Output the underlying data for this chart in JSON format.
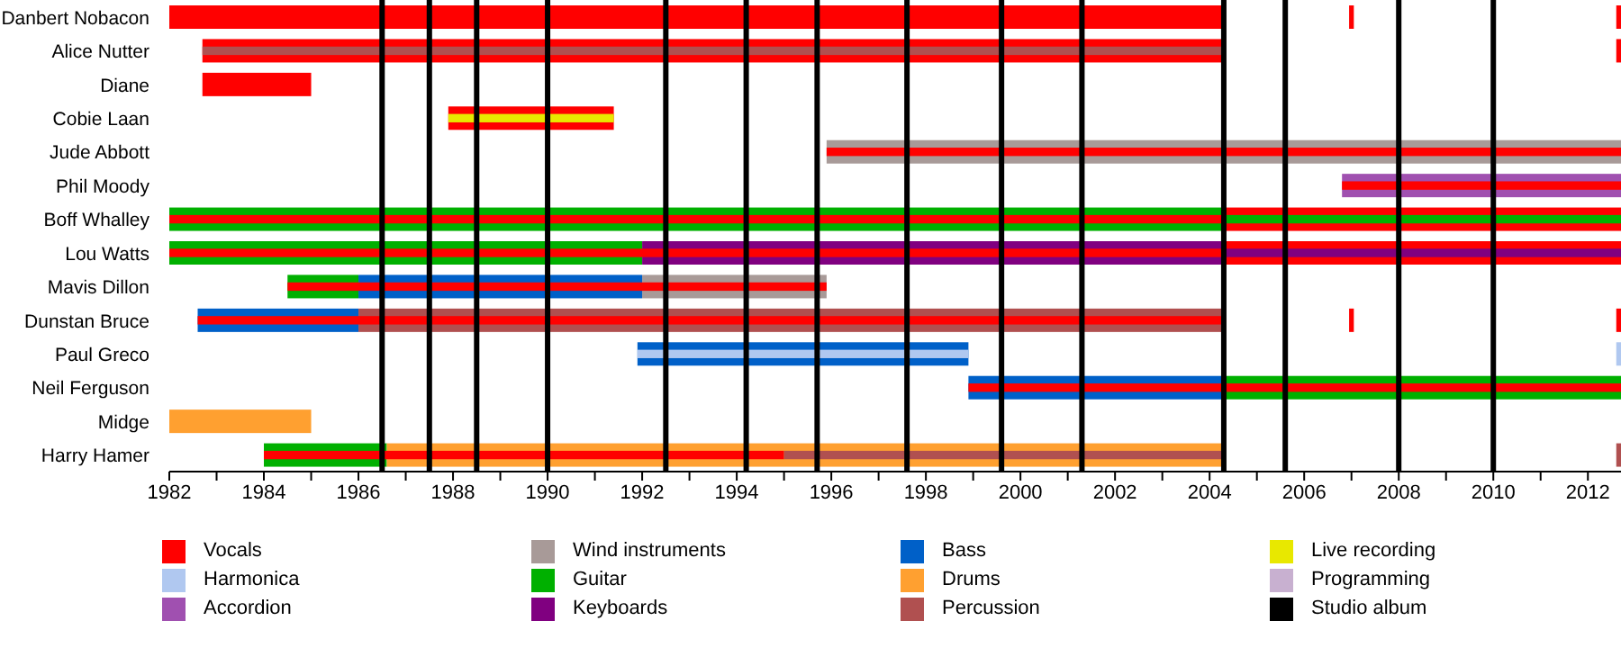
{
  "chart_data": {
    "type": "bar",
    "orientation": "horizontal",
    "categories": [
      "Danbert Nobacon",
      "Alice Nutter",
      "Diane",
      "Cobie Laan",
      "Jude Abbott",
      "Phil Moody",
      "Boff Whalley",
      "Lou Watts",
      "Mavis Dillon",
      "Dunstan Bruce",
      "Paul Greco",
      "Neil Ferguson",
      "Midge",
      "Harry Hamer"
    ],
    "xlim": [
      1982,
      2012.7
    ],
    "xticks": [
      1982,
      {
        "value": 1983,
        "label": null
      },
      1984,
      {
        "value": 1985,
        "label": null
      },
      1986,
      {
        "value": 1987,
        "label": null
      },
      1988,
      {
        "value": 1989,
        "label": null
      },
      1990,
      {
        "value": 1991,
        "label": null
      },
      1992,
      {
        "value": 1993,
        "label": null
      },
      1994,
      {
        "value": 1995,
        "label": null
      },
      1996,
      {
        "value": 1997,
        "label": null
      },
      1998,
      {
        "value": 1999,
        "label": null
      },
      2000,
      {
        "value": 2001,
        "label": null
      },
      2002,
      {
        "value": 2003,
        "label": null
      },
      2004,
      {
        "value": 2005,
        "label": null
      },
      2006,
      {
        "value": 2007,
        "label": null
      },
      2008,
      {
        "value": 2009,
        "label": null
      },
      2010,
      {
        "value": 2011,
        "label": null
      },
      2012
    ],
    "legend": "bottom",
    "series": [
      {
        "name": "Vocals",
        "color": "#ff0000",
        "base": [
          1982,
          1982.7,
          1982.7,
          1987.9,
          null,
          null,
          2004.3,
          2004.3,
          null,
          null,
          null,
          null,
          null,
          null
        ],
        "values": [
          22.3,
          21.6,
          2.3,
          3.5,
          null,
          null,
          8.4,
          8.4,
          null,
          null,
          null,
          null,
          null,
          null
        ]
      },
      {
        "name": "Harmonica",
        "color": "#b0c8f0",
        "base": [
          null,
          null,
          null,
          null,
          null,
          null,
          null,
          null,
          null,
          null,
          2012.6,
          null,
          null,
          null
        ],
        "values": [
          null,
          null,
          null,
          null,
          null,
          null,
          null,
          null,
          null,
          null,
          0.1,
          null,
          null,
          null
        ]
      },
      {
        "name": "Accordion",
        "color": "#a050b0",
        "base": [
          null,
          null,
          null,
          null,
          null,
          2006.8,
          null,
          null,
          null,
          null,
          null,
          null,
          null,
          null
        ],
        "values": [
          null,
          null,
          null,
          null,
          null,
          5.9,
          null,
          null,
          null,
          null,
          null,
          null,
          null,
          null
        ]
      },
      {
        "name": "Wind instruments",
        "color": "#a89a98",
        "base": [
          null,
          null,
          null,
          null,
          1995.9,
          null,
          null,
          null,
          1992,
          null,
          null,
          null,
          null,
          null
        ],
        "values": [
          null,
          null,
          null,
          null,
          16.8,
          null,
          null,
          null,
          3.9,
          null,
          null,
          null,
          null,
          null
        ]
      },
      {
        "name": "Guitar",
        "color": "#00b000",
        "base": [
          null,
          null,
          null,
          null,
          null,
          null,
          1982,
          1982,
          1984.5,
          null,
          null,
          2004.3,
          null,
          1984
        ],
        "values": [
          null,
          null,
          null,
          null,
          null,
          null,
          22.3,
          10,
          1.5,
          null,
          null,
          8.4,
          null,
          2.6
        ]
      },
      {
        "name": "Keyboards",
        "color": "#800080",
        "base": [
          null,
          null,
          null,
          null,
          null,
          null,
          null,
          1992,
          null,
          null,
          null,
          null,
          null,
          null
        ],
        "values": [
          null,
          null,
          null,
          null,
          null,
          null,
          null,
          12.3,
          null,
          null,
          null,
          null,
          null,
          null
        ]
      },
      {
        "name": "Bass",
        "color": "#0060c8",
        "base": [
          null,
          null,
          null,
          null,
          null,
          null,
          null,
          null,
          1986,
          1982.6,
          1991.9,
          1998.9,
          null,
          null
        ],
        "values": [
          null,
          null,
          null,
          null,
          null,
          null,
          null,
          null,
          6,
          3.4,
          7,
          5.4,
          null,
          null
        ]
      },
      {
        "name": "Drums",
        "color": "#ffa030",
        "base": [
          null,
          null,
          null,
          null,
          null,
          null,
          null,
          null,
          null,
          null,
          null,
          null,
          1982,
          1986.6
        ],
        "values": [
          null,
          null,
          null,
          null,
          null,
          null,
          null,
          null,
          null,
          null,
          null,
          null,
          3,
          17.7
        ]
      },
      {
        "name": "Percussion",
        "color": "#b05050",
        "base": [
          null,
          null,
          null,
          null,
          null,
          null,
          null,
          null,
          null,
          1986,
          null,
          null,
          null,
          2012.6
        ],
        "values": [
          null,
          null,
          null,
          null,
          null,
          null,
          null,
          null,
          null,
          18.3,
          null,
          null,
          null,
          0.1
        ]
      },
      {
        "color": "#ff0000",
        "base": [
          2006.95,
          null,
          null,
          null,
          null,
          null,
          null,
          null,
          null,
          2006.95,
          null,
          null,
          null,
          null
        ],
        "values": [
          0.1,
          null,
          null,
          null,
          null,
          null,
          null,
          null,
          null,
          0.1,
          null,
          null,
          null,
          null
        ]
      },
      {
        "color": "#ff0000",
        "base": [
          2012.6,
          2012.6,
          null,
          null,
          null,
          null,
          null,
          null,
          null,
          2012.6,
          null,
          null,
          null,
          null
        ],
        "values": [
          0.1,
          0.1,
          null,
          null,
          null,
          null,
          null,
          null,
          null,
          0.1,
          null,
          null,
          null,
          null
        ]
      },
      {
        "name": "Live recording",
        "color": "#e8e800",
        "base": [
          null,
          null,
          null,
          1987.9,
          null,
          null,
          null,
          null,
          null,
          null,
          null,
          null,
          null,
          null
        ],
        "values": [
          null,
          null,
          null,
          3.5,
          null,
          null,
          null,
          null,
          null,
          null,
          null,
          null,
          null,
          null
        ]
      },
      {
        "name": "Programming",
        "color": "#c8b0d0",
        "base": [
          null,
          null,
          null,
          null,
          null,
          null,
          null,
          null,
          null,
          null,
          null,
          null,
          null,
          null
        ],
        "values": [
          null,
          null,
          null,
          null,
          null,
          null,
          null,
          null,
          null,
          null,
          null,
          null,
          null,
          null
        ]
      },
      {
        "color": "#ff0000",
        "base": [
          null,
          null,
          null,
          null,
          1995.9,
          2006.8,
          1982,
          1982,
          1984.5,
          1982.6,
          null,
          1998.9,
          null,
          1984
        ],
        "values": [
          null,
          null,
          null,
          null,
          16.8,
          5.9,
          22.3,
          22.3,
          11.4,
          21.7,
          null,
          13.8,
          null,
          11
        ]
      },
      {
        "color": "#b05050",
        "base": [
          null,
          1982.7,
          null,
          null,
          null,
          null,
          null,
          null,
          null,
          null,
          null,
          null,
          null,
          1995
        ],
        "values": [
          null,
          21.6,
          null,
          null,
          null,
          null,
          null,
          null,
          null,
          null,
          null,
          null,
          null,
          9.3
        ]
      },
      {
        "color": "#00b000",
        "base": [
          null,
          null,
          null,
          null,
          null,
          null,
          2004.3,
          null,
          null,
          null,
          null,
          null,
          null,
          null
        ],
        "values": [
          null,
          null,
          null,
          null,
          null,
          null,
          8.4,
          null,
          null,
          null,
          null,
          null,
          null,
          null
        ]
      },
      {
        "color": "#800080",
        "base": [
          null,
          null,
          null,
          null,
          null,
          null,
          null,
          2004.3,
          null,
          null,
          null,
          null,
          null,
          null
        ],
        "values": [
          null,
          null,
          null,
          null,
          null,
          null,
          null,
          8.4,
          null,
          null,
          null,
          null,
          null,
          null
        ]
      },
      {
        "color": "#b0c8f0",
        "base": [
          null,
          null,
          null,
          null,
          null,
          null,
          null,
          null,
          null,
          null,
          1991.9,
          null,
          null,
          null
        ],
        "values": [
          null,
          null,
          null,
          null,
          null,
          null,
          null,
          null,
          null,
          null,
          7,
          null,
          null,
          null
        ]
      }
    ],
    "ref_lines": [
      {
        "axis": "x",
        "value": 1986.5,
        "color": "#000000",
        "label": "Studio album"
      },
      {
        "axis": "x",
        "value": 1987.5,
        "color": "#000000"
      },
      {
        "axis": "x",
        "value": 1988.5,
        "color": "#000000"
      },
      {
        "axis": "x",
        "value": 1990,
        "color": "#000000"
      },
      {
        "axis": "x",
        "value": 1992.5,
        "color": "#000000"
      },
      {
        "axis": "x",
        "value": 1994.2,
        "color": "#000000"
      },
      {
        "axis": "x",
        "value": 1995.7,
        "color": "#000000"
      },
      {
        "axis": "x",
        "value": 1997.6,
        "color": "#000000"
      },
      {
        "axis": "x",
        "value": 1999.6,
        "color": "#000000"
      },
      {
        "axis": "x",
        "value": 2001.3,
        "color": "#000000"
      },
      {
        "axis": "x",
        "value": 2004.3,
        "color": "#000000"
      },
      {
        "axis": "x",
        "value": 2005.6,
        "color": "#000000"
      },
      {
        "axis": "x",
        "value": 2008,
        "color": "#000000"
      },
      {
        "axis": "x",
        "value": 2010,
        "color": "#000000"
      }
    ]
  }
}
